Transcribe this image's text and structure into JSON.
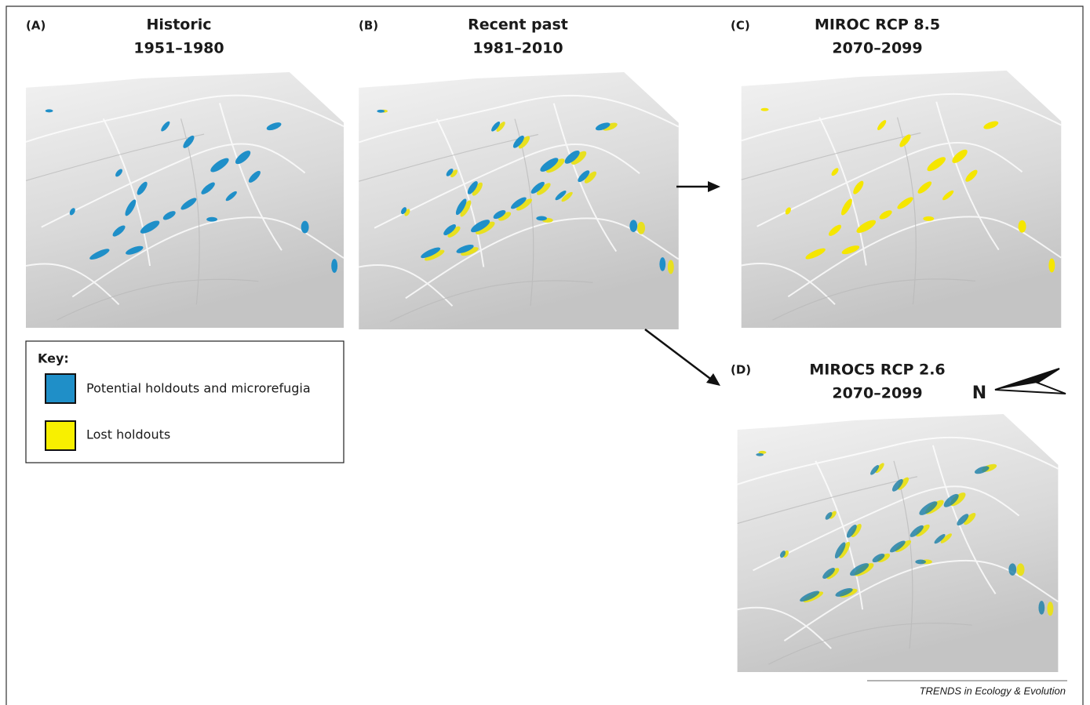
{
  "panels": [
    {
      "label": "(A)",
      "title": "Historic",
      "period": "1951–1980"
    },
    {
      "label": "(B)",
      "title": "Recent past",
      "period": "1981–2010"
    },
    {
      "label": "(C)",
      "title": "MIROC RCP 8.5",
      "period": "2070–2099"
    },
    {
      "label": "(D)",
      "title": "MIROC5 RCP 2.6",
      "period": "2070–2099"
    }
  ],
  "key": {
    "title": "Key:",
    "items": [
      "Potential holdouts and microrefugia",
      "Lost holdouts"
    ]
  },
  "compass": "N",
  "footer": "TRENDS in Ecology & Evolution"
}
